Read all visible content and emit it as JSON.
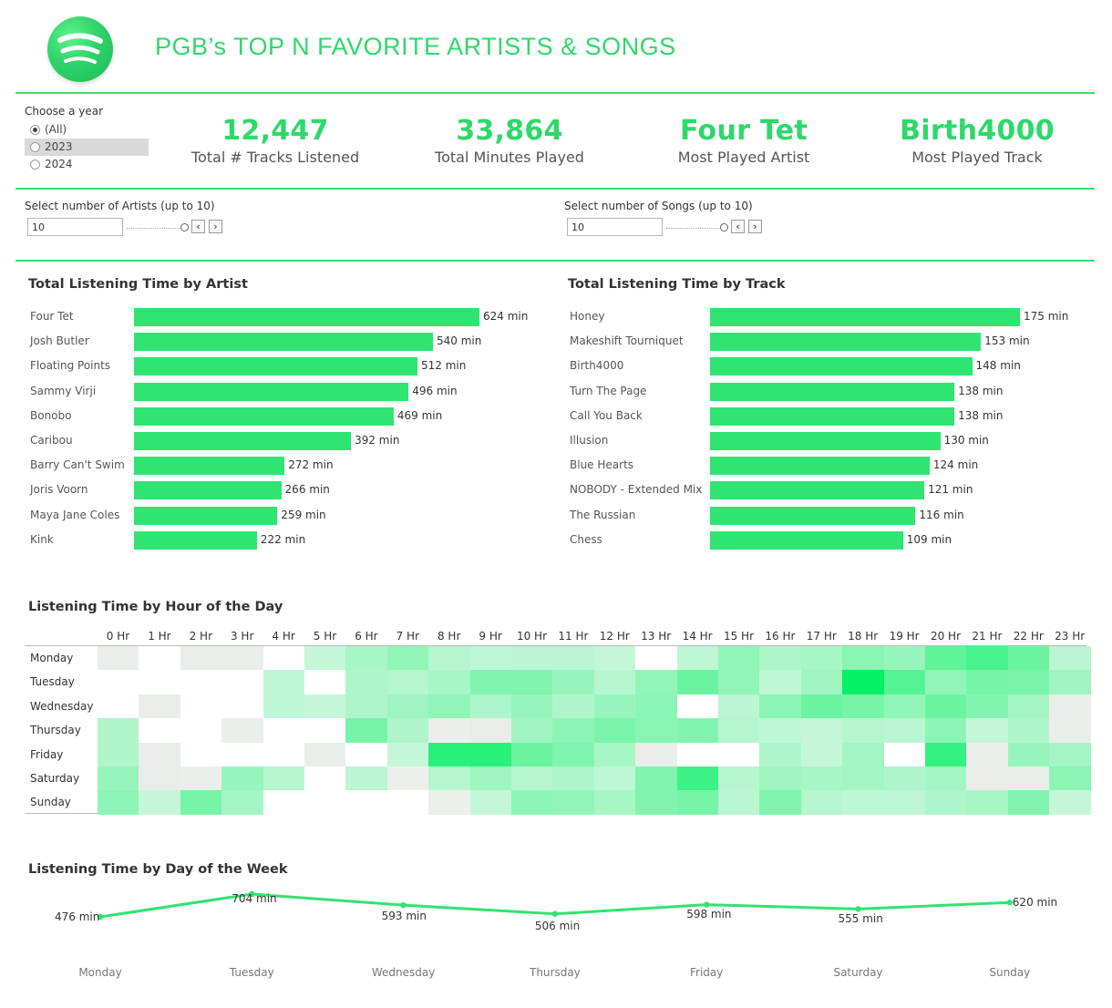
{
  "header": {
    "title": "PGB’s TOP N FAVORITE ARTISTS & SONGS",
    "logo_icon": "spotify-logo-icon"
  },
  "year_filter": {
    "label": "Choose a year",
    "options": [
      {
        "label": "(All)",
        "checked": true
      },
      {
        "label": "2023",
        "checked": false
      },
      {
        "label": "2024",
        "checked": false
      }
    ]
  },
  "kpis": [
    {
      "value": "12,447",
      "label": "Total # Tracks Listened"
    },
    {
      "value": "33,864",
      "label": "Total Minutes Played"
    },
    {
      "value": "Four Tet",
      "label": "Most Played Artist"
    },
    {
      "value": "Birth4000",
      "label": "Most Played Track"
    }
  ],
  "params": {
    "artists": {
      "label": "Select number of Artists  (up to 10)",
      "value": "10"
    },
    "songs": {
      "label": "Select number of Songs (up to 10)",
      "value": "10"
    }
  },
  "colors": {
    "accent": "#2fe471",
    "title_green": "#2ed86a",
    "rule": "#3ddc6f"
  },
  "chart_data": [
    {
      "type": "bar",
      "orientation": "horizontal",
      "title": "Total Listening Time by Artist",
      "categories": [
        "Four Tet",
        "Josh Butler",
        "Floating Points",
        "Sammy Virji",
        "Bonobo",
        "Caribou",
        "Barry Can't Swim",
        "Joris Voorn",
        "Maya Jane Coles",
        "Kink"
      ],
      "values": [
        624,
        540,
        512,
        496,
        469,
        392,
        272,
        266,
        259,
        222
      ],
      "value_labels": [
        "624 min",
        "540 min",
        "512 min",
        "496 min",
        "469 min",
        "392 min",
        "272 min",
        "266 min",
        "259 min",
        "222 min"
      ],
      "xlim": [
        0,
        624
      ]
    },
    {
      "type": "bar",
      "orientation": "horizontal",
      "title": "Total Listening Time by Track",
      "categories": [
        "Honey",
        "Makeshift Tourniquet",
        "Birth4000",
        "Turn The Page",
        "Call You Back",
        "Illusion",
        "Blue Hearts",
        "NOBODY - Extended Mix",
        "The Russian",
        "Chess"
      ],
      "values": [
        175,
        153,
        148,
        138,
        138,
        130,
        124,
        121,
        116,
        109
      ],
      "value_labels": [
        "175 min",
        "153 min",
        "148 min",
        "138 min",
        "138 min",
        "130 min",
        "124 min",
        "121 min",
        "116 min",
        "109 min"
      ],
      "xlim": [
        0,
        175
      ]
    },
    {
      "type": "heatmap",
      "title": "Listening Time by Hour of the Day",
      "x": [
        "0 Hr",
        "1 Hr",
        "2 Hr",
        "3 Hr",
        "4 Hr",
        "5 Hr",
        "6 Hr",
        "7 Hr",
        "8 Hr",
        "9 Hr",
        "10 Hr",
        "11 Hr",
        "12 Hr",
        "13 Hr",
        "14 Hr",
        "15 Hr",
        "16 Hr",
        "17 Hr",
        "18 Hr",
        "19 Hr",
        "20 Hr",
        "21 Hr",
        "22 Hr",
        "23 Hr"
      ],
      "y": [
        "Monday",
        "Tuesday",
        "Wednesday",
        "Thursday",
        "Friday",
        "Saturday",
        "Sunday"
      ],
      "values": [
        [
          0.1,
          0.0,
          0.1,
          0.1,
          0.0,
          0.15,
          0.28,
          0.38,
          0.22,
          0.18,
          0.2,
          0.2,
          0.15,
          0.0,
          0.18,
          0.38,
          0.25,
          0.28,
          0.42,
          0.35,
          0.6,
          0.7,
          0.55,
          0.2
        ],
        [
          0.0,
          0.0,
          0.0,
          0.0,
          0.18,
          0.0,
          0.25,
          0.22,
          0.28,
          0.45,
          0.45,
          0.35,
          0.22,
          0.38,
          0.55,
          0.38,
          0.18,
          0.32,
          1.0,
          0.65,
          0.38,
          0.5,
          0.48,
          0.32
        ],
        [
          0.0,
          0.12,
          0.0,
          0.0,
          0.18,
          0.15,
          0.25,
          0.32,
          0.38,
          0.25,
          0.35,
          0.25,
          0.35,
          0.4,
          0.0,
          0.2,
          0.4,
          0.55,
          0.5,
          0.38,
          0.55,
          0.45,
          0.3,
          0.1
        ],
        [
          0.25,
          0.0,
          0.0,
          0.1,
          0.0,
          0.0,
          0.5,
          0.25,
          0.08,
          0.12,
          0.32,
          0.4,
          0.48,
          0.42,
          0.45,
          0.22,
          0.18,
          0.15,
          0.22,
          0.2,
          0.4,
          0.15,
          0.25,
          0.1
        ],
        [
          0.25,
          0.12,
          0.0,
          0.0,
          0.0,
          0.1,
          0.0,
          0.15,
          0.85,
          0.85,
          0.55,
          0.45,
          0.28,
          0.1,
          0.0,
          0.0,
          0.25,
          0.15,
          0.3,
          0.0,
          0.8,
          0.08,
          0.35,
          0.3
        ],
        [
          0.35,
          0.12,
          0.08,
          0.35,
          0.22,
          0.0,
          0.2,
          0.06,
          0.22,
          0.32,
          0.22,
          0.25,
          0.18,
          0.45,
          0.75,
          0.22,
          0.32,
          0.28,
          0.3,
          0.25,
          0.3,
          0.1,
          0.12,
          0.4
        ],
        [
          0.4,
          0.15,
          0.5,
          0.3,
          0.0,
          0.0,
          0.0,
          0.0,
          0.06,
          0.15,
          0.4,
          0.38,
          0.28,
          0.45,
          0.5,
          0.2,
          0.45,
          0.22,
          0.18,
          0.18,
          0.25,
          0.28,
          0.45,
          0.15
        ]
      ]
    },
    {
      "type": "line",
      "title": "Listening Time by Day of the Week",
      "categories": [
        "Monday",
        "Tuesday",
        "Wednesday",
        "Thursday",
        "Friday",
        "Saturday",
        "Sunday"
      ],
      "values": [
        476,
        704,
        593,
        506,
        598,
        555,
        620
      ],
      "value_labels": [
        "476 min",
        "704 min",
        "593 min",
        "506 min",
        "598 min",
        "555 min",
        "620 min"
      ],
      "ylim": [
        476,
        704
      ]
    }
  ]
}
